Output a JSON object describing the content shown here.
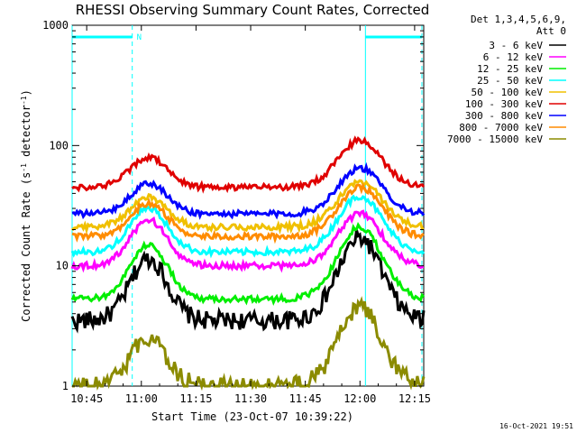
{
  "chart_data": {
    "type": "line",
    "title": "RHESSI Observing Summary Count Rates, Corrected",
    "xlabel": "Start Time (23-Oct-07 10:39:22)",
    "ylabel": "Corrected Count Rate (s⁻¹ detector⁻¹)",
    "ylabel_main": "Corrected Count Rate (s",
    "ylabel_sup1": "-1",
    "ylabel_mid": " detector",
    "ylabel_sup2": "-1",
    "ylabel_end": ")",
    "yscale": "log",
    "ylim": [
      1,
      1000
    ],
    "xlim_min": [
      41.0,
      137.5
    ],
    "x_ticks": [
      {
        "min": 45,
        "label": "10:45"
      },
      {
        "min": 60,
        "label": "11:00"
      },
      {
        "min": 75,
        "label": "11:15"
      },
      {
        "min": 90,
        "label": "11:30"
      },
      {
        "min": 105,
        "label": "11:45"
      },
      {
        "min": 120,
        "label": "12:00"
      },
      {
        "min": 135,
        "label": "12:15"
      }
    ],
    "y_ticks": [
      {
        "value": 1,
        "label": "1"
      },
      {
        "value": 10,
        "label": "10"
      },
      {
        "value": 100,
        "label": "100"
      },
      {
        "value": 1000,
        "label": "1000"
      }
    ],
    "legend_header": [
      "Det 1,3,4,5,6,9,",
      "Att 0"
    ],
    "legend_position": "top-right",
    "night_flag_label": "N",
    "night_intervals_min": [
      [
        41.0,
        57.5
      ],
      [
        121.5,
        137.0
      ]
    ],
    "vlines_min": [
      41.0,
      57.5,
      121.5,
      137.0
    ],
    "timestamp": "16-Oct-2021 19:51",
    "series": [
      {
        "name": "3 - 6 keV",
        "color": "#000000",
        "base": 3.5,
        "peak1": 11.5,
        "peak2": 17.0
      },
      {
        "name": "6 - 12 keV",
        "color": "#ff00ff",
        "base": 10.0,
        "peak1": 24.0,
        "peak2": 27.0
      },
      {
        "name": "12 - 25 keV",
        "color": "#00ee00",
        "base": 5.3,
        "peak1": 15.0,
        "peak2": 21.0
      },
      {
        "name": "25 - 50 keV",
        "color": "#00ffff",
        "base": 13.0,
        "peak1": 30.0,
        "peak2": 38.0
      },
      {
        "name": "50 - 100 keV",
        "color": "#f0c000",
        "base": 21.0,
        "peak1": 37.0,
        "peak2": 50.0
      },
      {
        "name": "100 - 300 keV",
        "color": "#e00000",
        "base": 45.0,
        "peak1": 80.0,
        "peak2": 110.0
      },
      {
        "name": "300 - 800 keV",
        "color": "#0000ff",
        "base": 27.0,
        "peak1": 48.0,
        "peak2": 65.0
      },
      {
        "name": "800 - 7000 keV",
        "color": "#ff8c00",
        "base": 17.5,
        "peak1": 33.0,
        "peak2": 45.0
      },
      {
        "name": "7000 - 15000 keV",
        "color": "#8b8b00",
        "base": 1.0,
        "peak1": 2.5,
        "peak2": 4.5
      }
    ]
  }
}
